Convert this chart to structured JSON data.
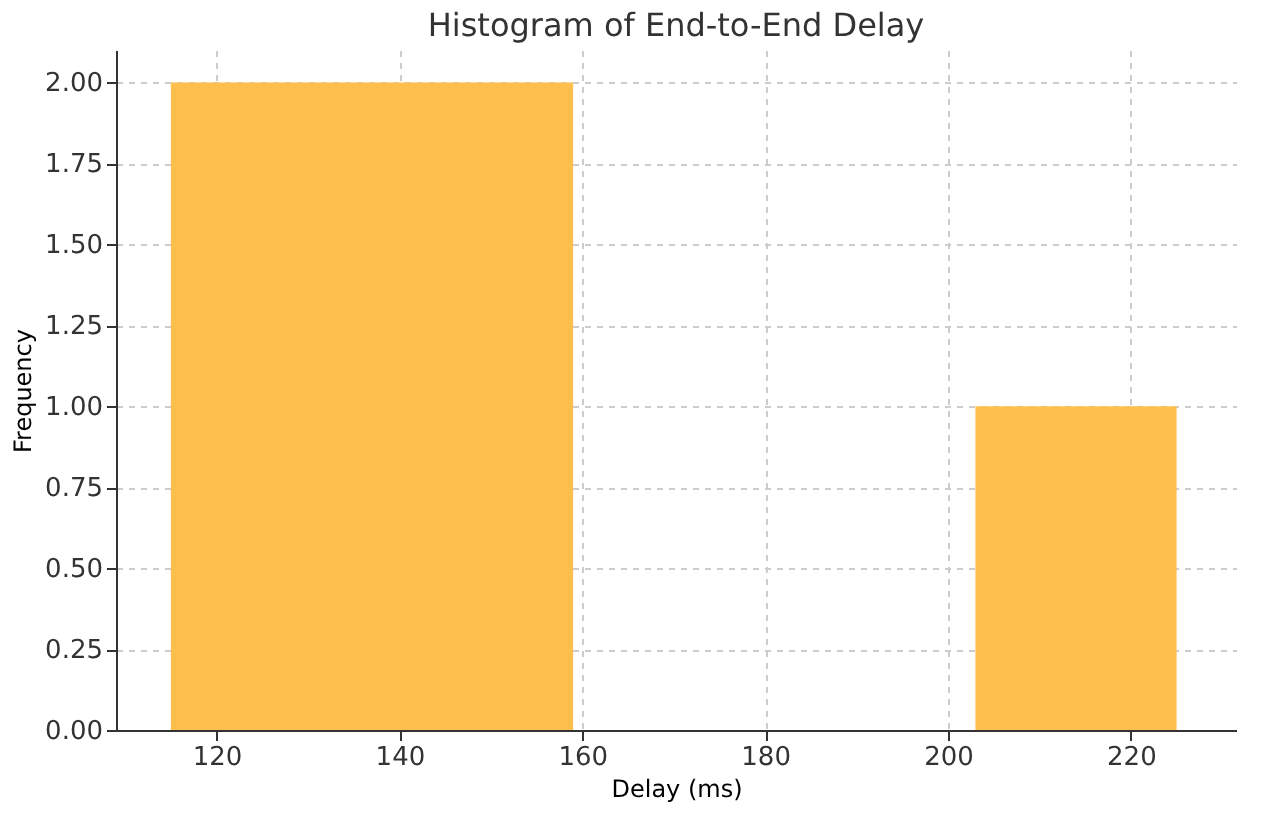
{
  "chart_data": {
    "type": "histogram",
    "title": "Histogram of End-to-End Delay",
    "xlabel": "Delay (ms)",
    "ylabel": "Frequency",
    "bins": [
      115,
      137,
      159,
      181,
      203,
      225
    ],
    "values": [
      2,
      2,
      0,
      0,
      1
    ],
    "color": "#ffbf4f",
    "xlim": [
      109,
      231.5
    ],
    "xticks": [
      120,
      140,
      160,
      180,
      200,
      220
    ],
    "ylim": [
      0,
      2.1
    ],
    "yticks": [
      {
        "value": 0,
        "label": "0.00"
      },
      {
        "value": 0.25,
        "label": "0.25"
      },
      {
        "value": 0.5,
        "label": "0.50"
      },
      {
        "value": 0.75,
        "label": "0.75"
      },
      {
        "value": 1,
        "label": "1.00"
      },
      {
        "value": 1.25,
        "label": "1.25"
      },
      {
        "value": 1.5,
        "label": "1.50"
      },
      {
        "value": 1.75,
        "label": "1.75"
      },
      {
        "value": 2,
        "label": "2.00"
      }
    ],
    "grid": true
  }
}
